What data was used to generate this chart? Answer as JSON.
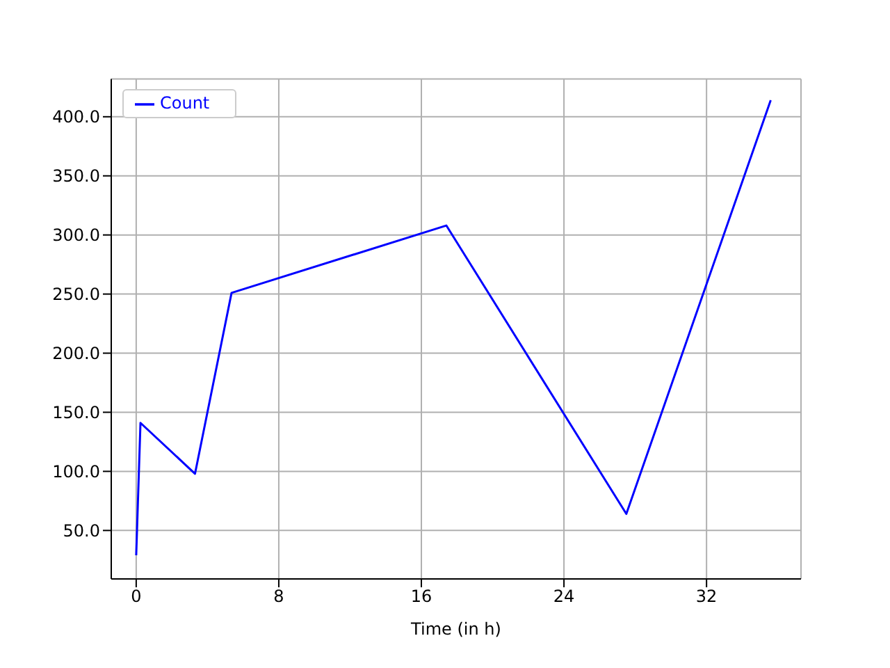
{
  "chart_data": {
    "type": "line",
    "xlabel": "Time (in h)",
    "x": [
      0,
      0.24,
      3.3,
      5.35,
      17.4,
      27.5,
      35.6
    ],
    "series": [
      {
        "name": "Count",
        "color": "#0000ff",
        "values": [
          29,
          141,
          98,
          251,
          308,
          64,
          414
        ]
      }
    ],
    "xlim": [
      -1.4,
      37.3
    ],
    "xticks": [
      0,
      8,
      16,
      24,
      32
    ],
    "ylim": [
      9,
      432
    ],
    "yticks": [
      {
        "value": 50,
        "label": "50.0"
      },
      {
        "value": 100,
        "label": "100.0"
      },
      {
        "value": 150,
        "label": "150.0"
      },
      {
        "value": 200,
        "label": "200.0"
      },
      {
        "value": 250,
        "label": "250.0"
      },
      {
        "value": 300,
        "label": "300.0"
      },
      {
        "value": 350,
        "label": "350.0"
      },
      {
        "value": 400,
        "label": "400.0"
      }
    ],
    "grid": true,
    "legend": "top left",
    "marker": "none",
    "line_style": "solid"
  }
}
